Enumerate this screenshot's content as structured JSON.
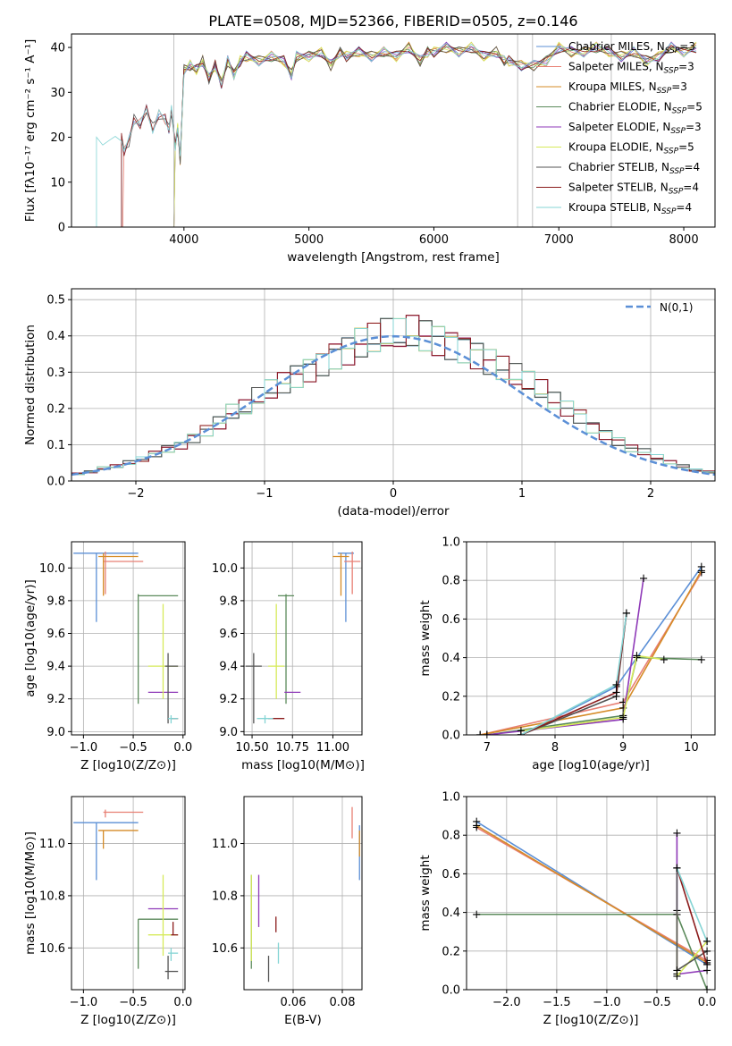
{
  "figure": {
    "title": "PLATE=0508, MJD=52366, FIBERID=0505, z=0.146"
  },
  "colors": {
    "Chabrier MILES": "#5b8fd6",
    "Salpeter MILES": "#e87f73",
    "Kroupa MILES": "#d58b27",
    "Chabrier ELODIE": "#5b8a5b",
    "Salpeter ELODIE": "#8f3ab8",
    "Kroupa ELODIE": "#d6ea5a",
    "Chabrier STELIB": "#555555",
    "Salpeter STELIB": "#8b1c1c",
    "Kroupa STELIB": "#84d4d4"
  },
  "chart_data": [
    {
      "type": "line",
      "panel": "spectrum",
      "title": "PLATE=0508, MJD=52366, FIBERID=0505, z=0.146",
      "xlabel": "wavelength [Angstrom, rest frame]",
      "ylabel": "Flux [fλ10⁻¹⁷ erg cm⁻² s⁻¹ A⁻¹]",
      "xlim": [
        3100,
        8250
      ],
      "ylim": [
        0,
        43
      ],
      "xticks": [
        4000,
        5000,
        6000,
        7000,
        8000
      ],
      "yticks": [
        0,
        10,
        20,
        30,
        40
      ],
      "legend_position": "top-right",
      "legend": [
        "Chabrier MILES, N_SSP=3",
        "Salpeter MILES, N_SSP=3",
        "Kroupa MILES, N_SSP=3",
        "Chabrier ELODIE, N_SSP=5",
        "Salpeter ELODIE, N_SSP=3",
        "Kroupa ELODIE, N_SSP=5",
        "Chabrier STELIB, N_SSP=4",
        "Salpeter STELIB, N_SSP=4",
        "Kroupa STELIB, N_SSP=4"
      ],
      "legend_main": [
        "Chabrier MILES, N",
        "Salpeter MILES, N",
        "Kroupa MILES, N",
        "Chabrier ELODIE, N",
        "Salpeter ELODIE, N",
        "Kroupa ELODIE, N",
        "Chabrier STELIB, N",
        "Salpeter STELIB, N",
        "Kroupa STELIB, N"
      ],
      "legend_sub": "SSP",
      "legend_val": [
        "=3",
        "=3",
        "=3",
        "=5",
        "=3",
        "=5",
        "=4",
        "=4",
        "=4"
      ],
      "spectrum_x": [
        3300,
        3350,
        3400,
        3450,
        3500,
        3520,
        3560,
        3600,
        3650,
        3700,
        3750,
        3800,
        3850,
        3880,
        3900,
        3930,
        3950,
        3970,
        4000,
        4050,
        4100,
        4150,
        4200,
        4250,
        4300,
        4350,
        4400,
        4450,
        4500,
        4600,
        4700,
        4800,
        4860,
        4900,
        5000,
        5100,
        5175,
        5250,
        5300,
        5400,
        5500,
        5600,
        5700,
        5800,
        5890,
        5950,
        6000,
        6100,
        6200,
        6300,
        6400,
        6500,
        6563,
        6600,
        6700,
        6800,
        6900,
        7000,
        7100,
        7200,
        7300,
        7400,
        7500,
        7600,
        7700,
        7800,
        7900,
        8000,
        8100
      ],
      "spectrum_y": [
        19,
        18.5,
        20,
        19,
        20,
        17,
        19,
        24,
        23,
        26,
        22,
        25,
        24,
        22,
        26,
        18,
        22,
        15,
        35,
        36,
        35,
        37,
        33,
        36,
        32,
        37,
        34,
        37,
        38,
        37,
        38,
        37,
        34,
        38,
        38,
        39,
        36,
        39,
        38,
        39,
        38,
        39,
        38,
        40,
        37,
        39,
        39,
        40,
        39,
        40,
        38,
        39,
        37,
        37,
        36,
        36,
        37,
        40,
        39,
        39,
        40,
        39,
        38,
        39,
        37,
        38,
        40,
        39,
        40
      ],
      "model_start": [
        3500,
        3510,
        3920,
        3920,
        3920,
        3920,
        3500,
        3500,
        3300
      ]
    },
    {
      "type": "line",
      "panel": "residuals",
      "xlabel": "(data-model)/error",
      "ylabel": "Normed distribution",
      "xlim": [
        -2.5,
        2.5
      ],
      "ylim": [
        0,
        0.53
      ],
      "xticks": [
        -2,
        -1,
        0,
        1,
        2
      ],
      "yticks": [
        0.0,
        0.1,
        0.2,
        0.3,
        0.4,
        0.5
      ],
      "legend_position": "top-right",
      "legend": [
        "N(0,1)"
      ],
      "hist_bins": [
        -2.5,
        -2.4,
        -2.3,
        -2.2,
        -2.1,
        -2.0,
        -1.9,
        -1.8,
        -1.7,
        -1.6,
        -1.5,
        -1.4,
        -1.3,
        -1.2,
        -1.1,
        -1.0,
        -0.9,
        -0.8,
        -0.7,
        -0.6,
        -0.5,
        -0.4,
        -0.3,
        -0.2,
        -0.1,
        0.0,
        0.1,
        0.2,
        0.3,
        0.4,
        0.5,
        0.6,
        0.7,
        0.8,
        0.9,
        1.0,
        1.1,
        1.2,
        1.3,
        1.4,
        1.5,
        1.6,
        1.7,
        1.8,
        1.9,
        2.0,
        2.1,
        2.2,
        2.3,
        2.4
      ],
      "hist_values": [
        0.02,
        0.025,
        0.035,
        0.04,
        0.05,
        0.06,
        0.075,
        0.09,
        0.1,
        0.12,
        0.14,
        0.16,
        0.19,
        0.2,
        0.23,
        0.25,
        0.27,
        0.29,
        0.31,
        0.33,
        0.35,
        0.36,
        0.38,
        0.39,
        0.4,
        0.4,
        0.41,
        0.4,
        0.39,
        0.38,
        0.37,
        0.35,
        0.33,
        0.31,
        0.29,
        0.27,
        0.25,
        0.22,
        0.2,
        0.18,
        0.15,
        0.13,
        0.11,
        0.09,
        0.08,
        0.065,
        0.05,
        0.04,
        0.03,
        0.025
      ]
    },
    {
      "type": "scatter",
      "panel": "age-vs-Z",
      "xlabel": "Z [log10(Z/Z⊙)]",
      "ylabel": "age [log10(age/yr)]",
      "xlim": [
        -1.12,
        0.02
      ],
      "ylim": [
        8.98,
        10.16
      ],
      "xticks": [
        -1.0,
        -0.5,
        0.0
      ],
      "yticks": [
        9.0,
        9.2,
        9.4,
        9.6,
        9.8,
        10.0
      ]
    },
    {
      "type": "scatter",
      "panel": "age-vs-mass",
      "xlabel": "mass [log10(M/M⊙)]",
      "xlim": [
        10.45,
        11.18
      ],
      "ylim": [
        8.98,
        10.16
      ],
      "xticks": [
        10.5,
        10.75,
        11.0
      ],
      "yticks": [
        9.0,
        9.2,
        9.4,
        9.6,
        9.8,
        10.0
      ]
    },
    {
      "type": "line",
      "panel": "mass-weight-vs-age",
      "xlabel": "age [log10(age/yr)]",
      "ylabel": "mass weight",
      "xlim": [
        6.7,
        10.35
      ],
      "ylim": [
        0,
        1.0
      ],
      "xticks": [
        7,
        8,
        9,
        10
      ],
      "yticks": [
        0.0,
        0.2,
        0.4,
        0.6,
        0.8,
        1.0
      ]
    },
    {
      "type": "scatter",
      "panel": "mass-vs-Z",
      "xlabel": "Z [log10(Z/Z⊙)]",
      "ylabel": "mass [log10(M/M⊙)]",
      "xlim": [
        -1.12,
        0.02
      ],
      "ylim": [
        10.44,
        11.18
      ],
      "xticks": [
        -1.0,
        -0.5,
        0.0
      ],
      "yticks": [
        10.6,
        10.8,
        11.0
      ]
    },
    {
      "type": "scatter",
      "panel": "mass-vs-EBV",
      "xlabel": "E(B-V)",
      "xlim": [
        0.04,
        0.088
      ],
      "ylim": [
        10.44,
        11.18
      ],
      "xticks": [
        0.06,
        0.08
      ],
      "yticks": [
        10.6,
        10.8,
        11.0
      ]
    },
    {
      "type": "line",
      "panel": "mass-weight-vs-Z",
      "xlabel": "Z [log10(Z/Z⊙)]",
      "ylabel": "mass weight",
      "xlim": [
        -2.4,
        0.08
      ],
      "ylim": [
        0,
        1.0
      ],
      "xticks": [
        -2.0,
        -1.5,
        -1.0,
        -0.5,
        0.0
      ],
      "yticks": [
        0.0,
        0.2,
        0.4,
        0.6,
        0.8,
        1.0
      ]
    }
  ],
  "models": [
    {
      "name": "Chabrier MILES",
      "Z": -0.87,
      "age": 10.09,
      "mass": 11.08,
      "ebv": 0.087,
      "Zerr": [
        -1.1,
        -0.45
      ],
      "ageerr": [
        9.67,
        10.09
      ],
      "masserr": [
        10.86,
        11.08
      ],
      "ebverr": [
        10.86,
        11.07
      ],
      "w_age": [
        [
          7.5,
          0.0
        ],
        [
          8.9,
          0.25
        ],
        [
          10.15,
          0.87
        ]
      ],
      "w_Z": [
        [
          -2.3,
          0.87
        ],
        [
          0.0,
          0.13
        ]
      ]
    },
    {
      "name": "Salpeter MILES",
      "Z": -0.78,
      "age": 10.04,
      "mass": 11.12,
      "ebv": 0.084,
      "Zerr": [
        -0.8,
        -0.4
      ],
      "ageerr": [
        9.84,
        10.1
      ],
      "masserr": [
        11.1,
        11.13
      ],
      "ebverr": [
        11.02,
        11.14
      ],
      "w_age": [
        [
          6.9,
          0.0
        ],
        [
          9.0,
          0.17
        ],
        [
          10.15,
          0.84
        ]
      ],
      "w_Z": [
        [
          -2.3,
          0.84
        ],
        [
          0.0,
          0.15
        ]
      ]
    },
    {
      "name": "Kroupa MILES",
      "Z": -0.8,
      "age": 10.07,
      "mass": 11.05,
      "ebv": 0.087,
      "Zerr": [
        -0.85,
        -0.45
      ],
      "ageerr": [
        9.83,
        10.09
      ],
      "masserr": [
        10.98,
        11.05
      ],
      "ebverr": [
        10.95,
        11.05
      ],
      "w_age": [
        [
          6.9,
          0.0
        ],
        [
          9.0,
          0.14
        ],
        [
          10.15,
          0.85
        ]
      ],
      "w_Z": [
        [
          -2.3,
          0.85
        ],
        [
          0.0,
          0.14
        ]
      ]
    },
    {
      "name": "Chabrier ELODIE",
      "Z": -0.45,
      "age": 9.83,
      "mass": 10.71,
      "ebv": 0.043,
      "Zerr": [
        -0.45,
        -0.05
      ],
      "ageerr": [
        9.17,
        9.84
      ],
      "masserr": [
        10.52,
        10.71
      ],
      "ebverr": [
        10.52,
        10.88
      ],
      "w_age": [
        [
          7.0,
          0.0
        ],
        [
          9.0,
          0.1
        ],
        [
          9.2,
          0.4
        ],
        [
          10.15,
          0.39
        ]
      ],
      "w_Z": [
        [
          -2.3,
          0.39
        ],
        [
          -0.3,
          0.39
        ],
        [
          0.0,
          0.0
        ]
      ]
    },
    {
      "name": "Salpeter ELODIE",
      "Z": -0.25,
      "age": 9.24,
      "mass": 10.75,
      "ebv": 0.046,
      "Zerr": [
        -0.35,
        -0.05
      ],
      "ageerr": [
        9.24,
        9.24
      ],
      "masserr": [
        10.75,
        10.75
      ],
      "ebverr": [
        10.68,
        10.88
      ],
      "w_age": [
        [
          7.0,
          0.0
        ],
        [
          9.0,
          0.08
        ],
        [
          9.3,
          0.81
        ]
      ],
      "w_Z": [
        [
          -0.3,
          0.81
        ],
        [
          -0.3,
          0.08
        ],
        [
          0.0,
          0.1
        ]
      ]
    },
    {
      "name": "Kroupa ELODIE",
      "Z": -0.2,
      "age": 9.4,
      "mass": 10.65,
      "ebv": 0.043,
      "Zerr": [
        -0.35,
        -0.05
      ],
      "ageerr": [
        9.2,
        9.78
      ],
      "masserr": [
        10.57,
        10.88
      ],
      "ebverr": [
        10.55,
        10.88
      ],
      "w_age": [
        [
          7.5,
          0.02
        ],
        [
          9.0,
          0.09
        ],
        [
          9.2,
          0.41
        ],
        [
          9.6,
          0.39
        ]
      ],
      "w_Z": [
        [
          -0.3,
          0.41
        ],
        [
          -0.3,
          0.07
        ],
        [
          0.0,
          0.25
        ]
      ]
    },
    {
      "name": "Chabrier STELIB",
      "Z": -0.15,
      "age": 9.4,
      "mass": 10.51,
      "ebv": 0.05,
      "Zerr": [
        -0.18,
        -0.05
      ],
      "ageerr": [
        9.05,
        9.48
      ],
      "masserr": [
        10.48,
        10.57
      ],
      "ebverr": [
        10.47,
        10.57
      ],
      "w_age": [
        [
          7.5,
          0.0
        ],
        [
          8.9,
          0.2
        ],
        [
          9.05,
          0.63
        ]
      ],
      "w_Z": [
        [
          -0.3,
          0.63
        ],
        [
          -0.3,
          0.1
        ],
        [
          0.0,
          0.2
        ]
      ]
    },
    {
      "name": "Salpeter STELIB",
      "Z": -0.1,
      "age": 9.08,
      "mass": 10.65,
      "ebv": 0.053,
      "Zerr": [
        -0.12,
        -0.05
      ],
      "ageerr": [
        9.08,
        9.08
      ],
      "masserr": [
        10.65,
        10.7
      ],
      "ebverr": [
        10.66,
        10.72
      ],
      "w_age": [
        [
          7.5,
          0.0
        ],
        [
          8.9,
          0.22
        ],
        [
          9.05,
          0.63
        ]
      ],
      "w_Z": [
        [
          -0.3,
          0.63
        ],
        [
          0.0,
          0.13
        ]
      ]
    },
    {
      "name": "Kroupa STELIB",
      "Z": -0.12,
      "age": 9.08,
      "mass": 10.58,
      "ebv": 0.054,
      "Zerr": [
        -0.15,
        -0.05
      ],
      "ageerr": [
        9.05,
        9.1
      ],
      "masserr": [
        10.55,
        10.6
      ],
      "ebverr": [
        10.54,
        10.62
      ],
      "w_age": [
        [
          7.5,
          0.0
        ],
        [
          8.9,
          0.26
        ],
        [
          9.05,
          0.63
        ]
      ],
      "w_Z": [
        [
          -0.3,
          0.63
        ],
        [
          0.0,
          0.25
        ]
      ]
    }
  ]
}
